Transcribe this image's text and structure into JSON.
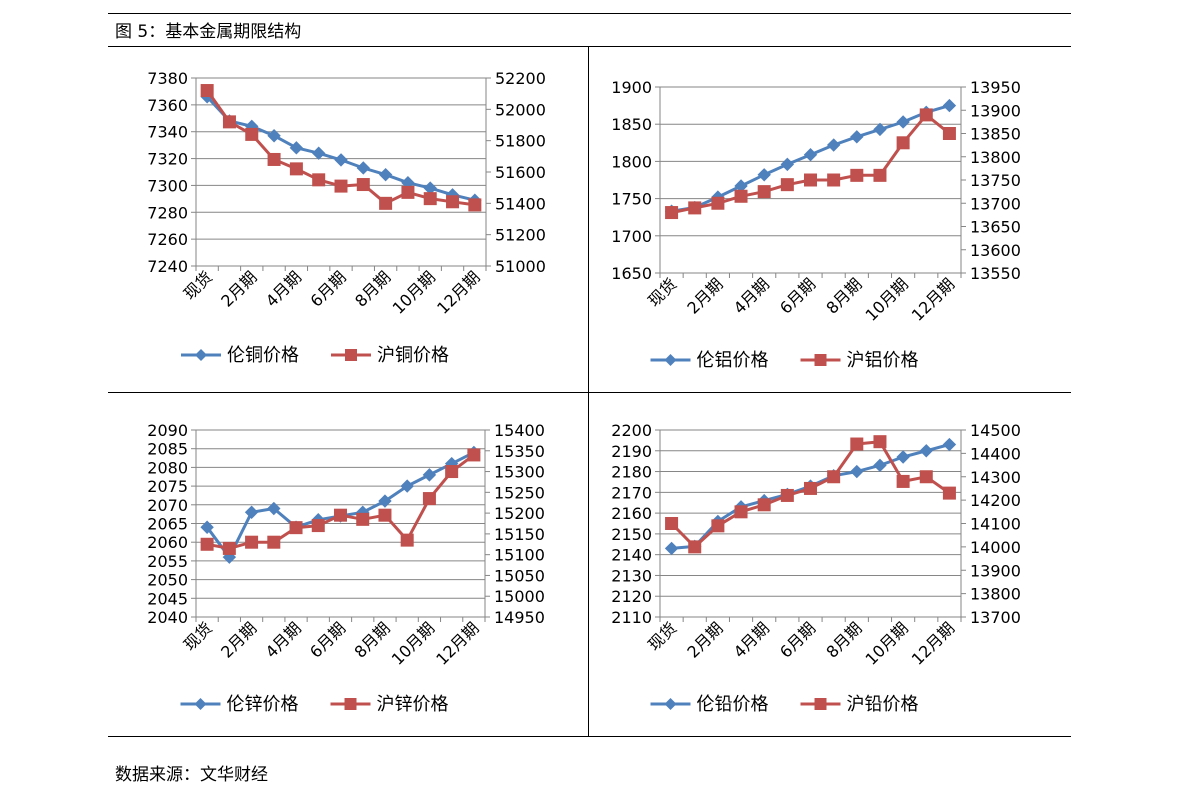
{
  "figure_title": "图 5：基本金属期限结构",
  "source": "数据来源：文华财经",
  "colors": {
    "lme": "#4f81bd",
    "shfe": "#c0504d",
    "grid": "#868686",
    "axis": "#868686"
  },
  "categories_labels": [
    "现货",
    "2月期",
    "4月期",
    "6月期",
    "8月期",
    "10月期",
    "12月期"
  ],
  "chart_data": [
    {
      "type": "line",
      "n_points": 13,
      "categories": [
        "现货",
        "",
        "2月期",
        "",
        "4月期",
        "",
        "6月期",
        "",
        "8月期",
        "",
        "10月期",
        "",
        "12月期"
      ],
      "grid": true,
      "legend_position": "bottom",
      "y_left": {
        "min": 7240,
        "max": 7380,
        "step": 20,
        "ticks": [
          "7240",
          "7260",
          "7280",
          "7300",
          "7320",
          "7340",
          "7360",
          "7380"
        ]
      },
      "y_right": {
        "min": 51000,
        "max": 52200,
        "step": 200,
        "ticks": [
          "51000",
          "51200",
          "51400",
          "51600",
          "51800",
          "52000",
          "52200"
        ]
      },
      "series": [
        {
          "name": "伦铜价格",
          "axis": "left",
          "marker": "diamond",
          "color": "#4f81bd",
          "values": [
            7366,
            7348,
            7344,
            7337,
            7328,
            7324,
            7319,
            7313,
            7308,
            7302,
            7298,
            7293,
            7289
          ]
        },
        {
          "name": "沪铜价格",
          "axis": "right",
          "marker": "square",
          "color": "#c0504d",
          "values": [
            52120,
            51920,
            51840,
            51680,
            51620,
            51550,
            51510,
            51520,
            51400,
            51470,
            51430,
            51410,
            51390
          ]
        }
      ]
    },
    {
      "type": "line",
      "n_points": 13,
      "categories": [
        "现货",
        "",
        "2月期",
        "",
        "4月期",
        "",
        "6月期",
        "",
        "8月期",
        "",
        "10月期",
        "",
        "12月期"
      ],
      "grid": true,
      "legend_position": "bottom",
      "y_left": {
        "min": 1650,
        "max": 1900,
        "step": 50,
        "ticks": [
          "1650",
          "1700",
          "1750",
          "1800",
          "1850",
          "1900"
        ]
      },
      "y_right": {
        "min": 13550,
        "max": 13950,
        "step": 50,
        "ticks": [
          "13550",
          "13600",
          "13650",
          "13700",
          "13750",
          "13800",
          "13850",
          "13900",
          "13950"
        ]
      },
      "series": [
        {
          "name": "伦铝价格",
          "axis": "left",
          "marker": "diamond",
          "color": "#4f81bd",
          "values": [
            1733,
            1738,
            1752,
            1767,
            1782,
            1796,
            1809,
            1822,
            1833,
            1843,
            1853,
            1866,
            1875
          ]
        },
        {
          "name": "沪铝价格",
          "axis": "right",
          "marker": "square",
          "color": "#c0504d",
          "values": [
            13680,
            13690,
            13700,
            13715,
            13725,
            13740,
            13750,
            13750,
            13760,
            13760,
            13830,
            13890,
            13850
          ]
        }
      ]
    },
    {
      "type": "line",
      "n_points": 13,
      "categories": [
        "现货",
        "",
        "2月期",
        "",
        "4月期",
        "",
        "6月期",
        "",
        "8月期",
        "",
        "10月期",
        "",
        "12月期"
      ],
      "grid": true,
      "legend_position": "bottom",
      "y_left": {
        "min": 2040,
        "max": 2090,
        "step": 5,
        "ticks": [
          "2040",
          "2045",
          "2050",
          "2055",
          "2060",
          "2065",
          "2070",
          "2075",
          "2080",
          "2085",
          "2090"
        ]
      },
      "y_right": {
        "min": 14950,
        "max": 15400,
        "step": 50,
        "ticks": [
          "14950",
          "15000",
          "15050",
          "15100",
          "15150",
          "15200",
          "15250",
          "15300",
          "15350",
          "15400"
        ]
      },
      "series": [
        {
          "name": "伦锌价格",
          "axis": "left",
          "marker": "diamond",
          "color": "#4f81bd",
          "values": [
            2064,
            2056,
            2068,
            2069,
            2064,
            2066,
            2067,
            2068,
            2071,
            2075,
            2078,
            2081,
            2084
          ]
        },
        {
          "name": "沪锌价格",
          "axis": "right",
          "marker": "square",
          "color": "#c0504d",
          "values": [
            15125,
            15115,
            15130,
            15130,
            15165,
            15170,
            15195,
            15185,
            15195,
            15135,
            15235,
            15300,
            15340
          ]
        }
      ]
    },
    {
      "type": "line",
      "n_points": 13,
      "categories": [
        "现货",
        "",
        "2月期",
        "",
        "4月期",
        "",
        "6月期",
        "",
        "8月期",
        "",
        "10月期",
        "",
        "12月期"
      ],
      "grid": true,
      "legend_position": "bottom",
      "y_left": {
        "min": 2110,
        "max": 2200,
        "step": 10,
        "ticks": [
          "2110",
          "2120",
          "2130",
          "2140",
          "2150",
          "2160",
          "2170",
          "2180",
          "2190",
          "2200"
        ]
      },
      "y_right": {
        "min": 13700,
        "max": 14500,
        "step": 100,
        "ticks": [
          "13700",
          "13800",
          "13900",
          "14000",
          "14100",
          "14200",
          "14300",
          "14400",
          "14500"
        ]
      },
      "series": [
        {
          "name": "伦铅价格",
          "axis": "left",
          "marker": "diamond",
          "color": "#4f81bd",
          "values": [
            2143,
            2144,
            2156,
            2163,
            2166,
            2169,
            2173,
            2178,
            2180,
            2183,
            2187,
            2190,
            2193
          ]
        },
        {
          "name": "沪铅价格",
          "axis": "right",
          "marker": "square",
          "color": "#c0504d",
          "values": [
            14100,
            14000,
            14090,
            14150,
            14180,
            14220,
            14250,
            14300,
            14440,
            14450,
            14280,
            14300,
            14230
          ]
        }
      ]
    }
  ]
}
